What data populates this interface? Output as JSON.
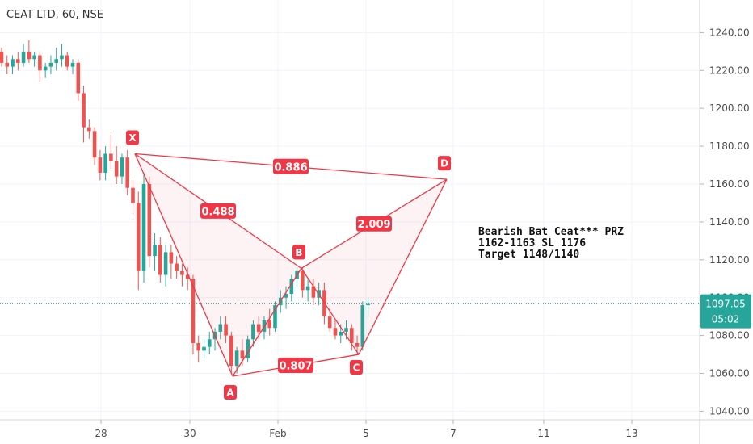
{
  "header": {
    "title": "CEAT LTD, 60, NSE"
  },
  "annotation": {
    "lines": [
      "Bearish Bat Ceat*** PRZ",
      "1162-1163 SL 1176",
      "Target 1148/1140"
    ]
  },
  "price_badge": {
    "price": "1097.05",
    "countdown": "05:02"
  },
  "colors": {
    "up": "#26a69a",
    "down": "#ef5350",
    "pattern": "#f23645",
    "grid": "#f0f3fa",
    "axis_text": "#4a4a4a",
    "last_price": "#26a69a"
  },
  "chart_data": {
    "type": "candlestick",
    "title": "CEAT LTD, 60, NSE",
    "xlabel": "",
    "ylabel": "",
    "ylim": [
      1037,
      1253
    ],
    "y_ticks": [
      "1040.00",
      "1060.00",
      "1080.00",
      "1100.00",
      "1120.00",
      "1140.00",
      "1160.00",
      "1180.00",
      "1200.00",
      "1220.00",
      "1240.00"
    ],
    "x_ticks": [
      {
        "label": "28",
        "session": 0
      },
      {
        "label": "30",
        "session": 1
      },
      {
        "label": "Feb",
        "session": 2
      },
      {
        "label": "5",
        "session": 3
      },
      {
        "label": "7",
        "session": 4
      },
      {
        "label": "11",
        "session": 5
      },
      {
        "label": "13",
        "session": 6
      }
    ],
    "candles": [
      [
        1230,
        1232,
        1222,
        1224
      ],
      [
        1224,
        1228,
        1218,
        1222
      ],
      [
        1222,
        1228,
        1218,
        1226
      ],
      [
        1226,
        1230,
        1220,
        1224
      ],
      [
        1224,
        1234,
        1222,
        1230
      ],
      [
        1230,
        1236,
        1224,
        1226
      ],
      [
        1226,
        1230,
        1222,
        1228
      ],
      [
        1228,
        1230,
        1214,
        1220
      ],
      [
        1220,
        1224,
        1216,
        1222
      ],
      [
        1222,
        1228,
        1218,
        1224
      ],
      [
        1224,
        1232,
        1220,
        1226
      ],
      [
        1226,
        1234,
        1222,
        1228
      ],
      [
        1228,
        1230,
        1220,
        1222
      ],
      [
        1222,
        1226,
        1218,
        1224
      ],
      [
        1224,
        1226,
        1204,
        1208
      ],
      [
        1208,
        1212,
        1182,
        1190
      ],
      [
        1190,
        1194,
        1184,
        1188
      ],
      [
        1188,
        1190,
        1170,
        1174
      ],
      [
        1174,
        1178,
        1162,
        1166
      ],
      [
        1166,
        1180,
        1162,
        1176
      ],
      [
        1176,
        1186,
        1168,
        1172
      ],
      [
        1172,
        1180,
        1160,
        1164
      ],
      [
        1164,
        1176,
        1160,
        1174
      ],
      [
        1174,
        1178,
        1154,
        1158
      ],
      [
        1158,
        1162,
        1144,
        1150
      ],
      [
        1150,
        1156,
        1104,
        1114
      ],
      [
        1114,
        1166,
        1108,
        1160
      ],
      [
        1160,
        1164,
        1116,
        1122
      ],
      [
        1122,
        1134,
        1114,
        1128
      ],
      [
        1128,
        1132,
        1108,
        1112
      ],
      [
        1112,
        1128,
        1106,
        1124
      ],
      [
        1124,
        1128,
        1110,
        1118
      ],
      [
        1118,
        1122,
        1110,
        1114
      ],
      [
        1114,
        1118,
        1106,
        1112
      ],
      [
        1112,
        1116,
        1104,
        1110
      ],
      [
        1110,
        1112,
        1070,
        1076
      ],
      [
        1076,
        1080,
        1066,
        1072
      ],
      [
        1072,
        1078,
        1068,
        1074
      ],
      [
        1074,
        1082,
        1070,
        1078
      ],
      [
        1078,
        1084,
        1072,
        1082
      ],
      [
        1082,
        1090,
        1078,
        1086
      ],
      [
        1086,
        1090,
        1076,
        1080
      ],
      [
        1080,
        1082,
        1060,
        1064
      ],
      [
        1064,
        1074,
        1060,
        1072
      ],
      [
        1072,
        1078,
        1064,
        1068
      ],
      [
        1068,
        1080,
        1066,
        1078
      ],
      [
        1078,
        1088,
        1074,
        1086
      ],
      [
        1086,
        1090,
        1078,
        1082
      ],
      [
        1082,
        1090,
        1078,
        1088
      ],
      [
        1088,
        1094,
        1080,
        1084
      ],
      [
        1084,
        1098,
        1082,
        1096
      ],
      [
        1096,
        1104,
        1092,
        1100
      ],
      [
        1100,
        1106,
        1094,
        1102
      ],
      [
        1102,
        1112,
        1098,
        1110
      ],
      [
        1110,
        1116,
        1106,
        1114
      ],
      [
        1114,
        1116,
        1100,
        1104
      ],
      [
        1104,
        1110,
        1098,
        1106
      ],
      [
        1106,
        1110,
        1096,
        1100
      ],
      [
        1100,
        1108,
        1096,
        1104
      ],
      [
        1104,
        1108,
        1086,
        1090
      ],
      [
        1090,
        1094,
        1082,
        1084
      ],
      [
        1084,
        1088,
        1078,
        1080
      ],
      [
        1080,
        1086,
        1076,
        1082
      ],
      [
        1082,
        1088,
        1078,
        1084
      ],
      [
        1084,
        1086,
        1072,
        1076
      ],
      [
        1076,
        1080,
        1070,
        1074
      ],
      [
        1074,
        1098,
        1072,
        1096
      ],
      [
        1096,
        1100,
        1090,
        1097.05
      ]
    ],
    "last_price": 1097.05,
    "pattern": {
      "name": "Bearish Bat",
      "points": [
        {
          "label": "X",
          "price": 1176
        },
        {
          "label": "A",
          "price": 1058.5
        },
        {
          "label": "B",
          "price": 1115.5
        },
        {
          "label": "C",
          "price": 1070
        },
        {
          "label": "D",
          "price": 1162.5
        }
      ],
      "ratios": [
        {
          "from": "X",
          "to": "B",
          "label": "0.488"
        },
        {
          "from": "A",
          "to": "C",
          "label": "0.807"
        },
        {
          "from": "B",
          "to": "D",
          "label": "2.009"
        },
        {
          "from": "X",
          "to": "D",
          "label": "0.886"
        }
      ]
    }
  }
}
